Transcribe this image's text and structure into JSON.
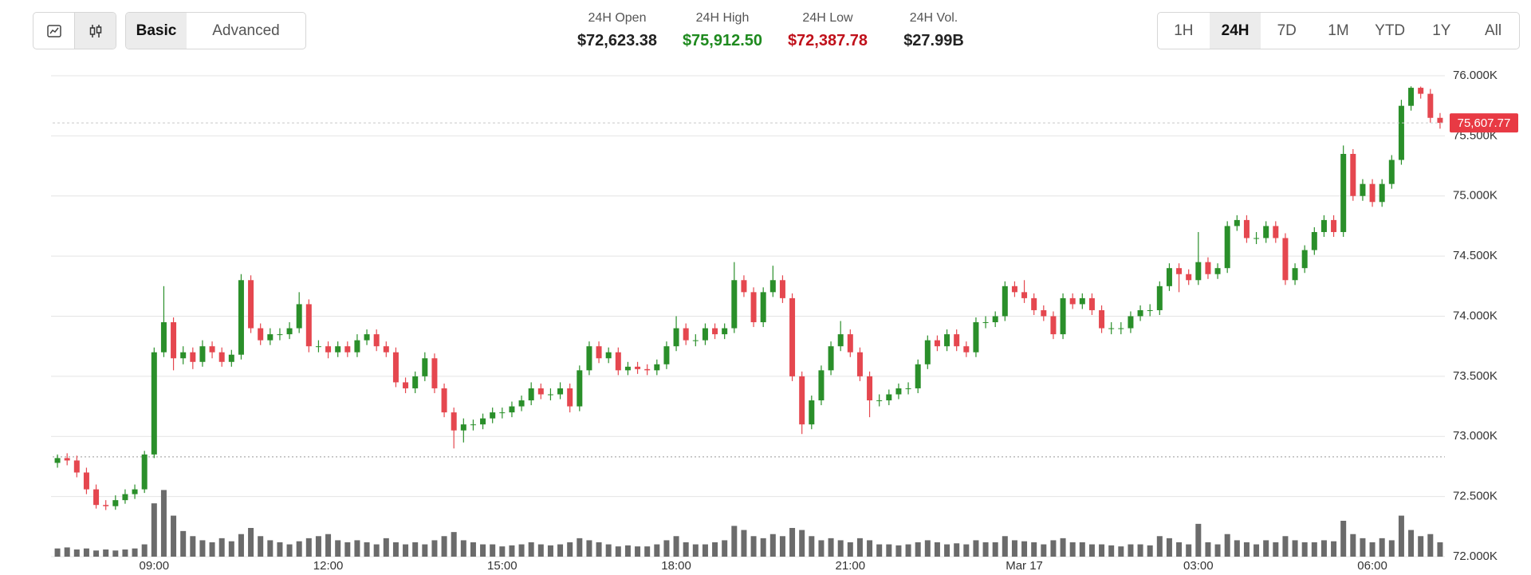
{
  "toolbar": {
    "view_buttons": [
      "Basic",
      "Advanced"
    ],
    "active_view": "Basic",
    "stats": [
      {
        "label": "24H Open",
        "value": "$72,623.38",
        "color": "#222222"
      },
      {
        "label": "24H High",
        "value": "$75,912.50",
        "color": "#1e8a1e"
      },
      {
        "label": "24H Low",
        "value": "$72,387.78",
        "color": "#c0111b"
      },
      {
        "label": "24H Vol.",
        "value": "$27.99B",
        "color": "#222222"
      }
    ],
    "range_buttons": [
      "1H",
      "24H",
      "7D",
      "1M",
      "YTD",
      "1Y",
      "All"
    ],
    "active_range": "24H"
  },
  "chart_data": {
    "type": "candlestick",
    "up_color": "#2a8f2a",
    "down_color": "#e5474f",
    "volume_color": "#6b6b6b",
    "grid": true,
    "ylim": [
      72000,
      76000
    ],
    "yticks": [
      {
        "value": 72000,
        "label": "72.000K"
      },
      {
        "value": 72500,
        "label": "72.500K"
      },
      {
        "value": 73000,
        "label": "73.000K"
      },
      {
        "value": 73500,
        "label": "73.500K"
      },
      {
        "value": 74000,
        "label": "74.000K"
      },
      {
        "value": 74500,
        "label": "74.500K"
      },
      {
        "value": 75000,
        "label": "75.000K"
      },
      {
        "value": 75500,
        "label": "75.500K"
      },
      {
        "value": 76000,
        "label": "76.000K"
      }
    ],
    "last_price_label": "75,607.77",
    "reference_line": 72830,
    "volume_lim": [
      0,
      70
    ],
    "categories": [
      null,
      null,
      null,
      null,
      null,
      null,
      null,
      null,
      null,
      null,
      "09:00",
      null,
      null,
      null,
      null,
      null,
      null,
      null,
      null,
      null,
      null,
      null,
      null,
      null,
      null,
      null,
      null,
      null,
      "12:00",
      null,
      null,
      null,
      null,
      null,
      null,
      null,
      null,
      null,
      null,
      null,
      null,
      null,
      null,
      null,
      null,
      null,
      "15:00",
      null,
      null,
      null,
      null,
      null,
      null,
      null,
      null,
      null,
      null,
      null,
      null,
      null,
      null,
      null,
      null,
      null,
      "18:00",
      null,
      null,
      null,
      null,
      null,
      null,
      null,
      null,
      null,
      null,
      null,
      null,
      null,
      null,
      null,
      null,
      null,
      "21:00",
      null,
      null,
      null,
      null,
      null,
      null,
      null,
      null,
      null,
      null,
      null,
      null,
      null,
      null,
      null,
      null,
      null,
      "Mar 17",
      null,
      null,
      null,
      null,
      null,
      null,
      null,
      null,
      null,
      null,
      null,
      null,
      null,
      null,
      null,
      null,
      null,
      "03:00",
      null,
      null,
      null,
      null,
      null,
      null,
      null,
      null,
      null,
      null,
      null,
      null,
      null,
      null,
      null,
      null,
      null,
      "06:00",
      null,
      null,
      null,
      null,
      null,
      null,
      null
    ],
    "open": [
      72780,
      72820,
      72800,
      72700,
      72560,
      72430,
      72420,
      72470,
      72520,
      72560,
      72850,
      73700,
      73950,
      73650,
      73700,
      73620,
      73750,
      73700,
      73620,
      73680,
      74300,
      73900,
      73800,
      73850,
      73850,
      73900,
      74100,
      73750,
      73750,
      73700,
      73750,
      73700,
      73800,
      73850,
      73750,
      73700,
      73450,
      73400,
      73500,
      73650,
      73400,
      73200,
      73050,
      73100,
      73100,
      73150,
      73200,
      73200,
      73250,
      73300,
      73400,
      73350,
      73350,
      73400,
      73250,
      73550,
      73750,
      73650,
      73700,
      73550,
      73580,
      73560,
      73550,
      73600,
      73750,
      73900,
      73800,
      73800,
      73900,
      73850,
      73900,
      74300,
      74200,
      73950,
      74200,
      74300,
      74150,
      73500,
      73100,
      73300,
      73550,
      73750,
      73850,
      73700,
      73500,
      73300,
      73300,
      73350,
      73400,
      73400,
      73600,
      73800,
      73750,
      73850,
      73750,
      73700,
      73950,
      73950,
      74000,
      74250,
      74200,
      74150,
      74050,
      74000,
      73850,
      74150,
      74100,
      74150,
      74050,
      73900,
      73900,
      73900,
      74000,
      74050,
      74050,
      74250,
      74400,
      74350,
      74300,
      74450,
      74350,
      74400,
      74750,
      74800,
      74650,
      74650,
      74750,
      74650,
      74300,
      74400,
      74550,
      74700,
      74800,
      74700,
      75350,
      75000,
      75100,
      74950,
      75100,
      75300,
      75750,
      75900,
      75850,
      75650
    ],
    "high": [
      72850,
      72860,
      72840,
      72740,
      72600,
      72470,
      72510,
      72560,
      72600,
      72880,
      73740,
      74250,
      73990,
      73750,
      73740,
      73800,
      73790,
      73740,
      73720,
      74350,
      74340,
      73940,
      73900,
      73900,
      73950,
      74200,
      74140,
      73800,
      73790,
      73790,
      73790,
      73850,
      73890,
      73890,
      73790,
      73740,
      73490,
      73540,
      73700,
      73690,
      73440,
      73240,
      73150,
      73140,
      73190,
      73240,
      73240,
      73290,
      73340,
      73450,
      73440,
      73400,
      73450,
      73440,
      73590,
      73790,
      73790,
      73740,
      73740,
      73620,
      73620,
      73600,
      73640,
      73790,
      74000,
      73940,
      73850,
      73940,
      73940,
      73940,
      74450,
      74340,
      74240,
      74240,
      74420,
      74340,
      74190,
      73540,
      73340,
      73590,
      73790,
      73960,
      73890,
      73740,
      73540,
      73350,
      73390,
      73440,
      73450,
      73640,
      73840,
      73840,
      73890,
      73890,
      73790,
      73990,
      74000,
      74040,
      74290,
      74290,
      74300,
      74190,
      74090,
      74040,
      74190,
      74190,
      74190,
      74190,
      74090,
      73950,
      73950,
      74040,
      74090,
      74100,
      74290,
      74440,
      74440,
      74390,
      74700,
      74490,
      74440,
      74790,
      74840,
      74840,
      74700,
      74790,
      74790,
      74690,
      74440,
      74590,
      74740,
      74840,
      74840,
      75420,
      75390,
      75140,
      75140,
      75140,
      75340,
      75800,
      75912.5,
      75910,
      75890,
      75690
    ],
    "low": [
      72740,
      72760,
      72660,
      72520,
      72400,
      72387.78,
      72390,
      72440,
      72480,
      72530,
      72820,
      73660,
      73550,
      73600,
      73560,
      73580,
      73650,
      73580,
      73580,
      73640,
      73860,
      73760,
      73760,
      73800,
      73810,
      73860,
      73700,
      73700,
      73650,
      73660,
      73660,
      73660,
      73760,
      73710,
      73660,
      73410,
      73360,
      73360,
      73460,
      73360,
      73160,
      72900,
      72950,
      73050,
      73060,
      73110,
      73150,
      73160,
      73210,
      73260,
      73310,
      73300,
      73310,
      73200,
      73210,
      73510,
      73610,
      73610,
      73510,
      73510,
      73520,
      73510,
      73510,
      73560,
      73710,
      73760,
      73750,
      73760,
      73810,
      73810,
      73860,
      74160,
      73910,
      73910,
      74160,
      74110,
      73460,
      73020,
      73060,
      73260,
      73510,
      73710,
      73660,
      73460,
      73160,
      73250,
      73260,
      73310,
      73350,
      73360,
      73560,
      73710,
      73710,
      73710,
      73660,
      73660,
      73900,
      73910,
      73960,
      74160,
      74110,
      74010,
      73960,
      73810,
      73810,
      74060,
      74060,
      74010,
      73860,
      73850,
      73850,
      73860,
      73960,
      74000,
      74010,
      74210,
      74200,
      74260,
      74260,
      74310,
      74310,
      74360,
      74710,
      74610,
      74600,
      74610,
      74610,
      74260,
      74260,
      74360,
      74510,
      74660,
      74660,
      74660,
      74960,
      74960,
      74910,
      74910,
      75060,
      75260,
      75710,
      75810,
      75610,
      75560
    ],
    "close": [
      72820,
      72800,
      72700,
      72560,
      72430,
      72420,
      72470,
      72520,
      72560,
      72850,
      73700,
      73950,
      73650,
      73700,
      73620,
      73750,
      73700,
      73620,
      73680,
      74300,
      73900,
      73800,
      73850,
      73850,
      73900,
      74100,
      73750,
      73750,
      73700,
      73750,
      73700,
      73800,
      73850,
      73750,
      73700,
      73450,
      73400,
      73500,
      73650,
      73400,
      73200,
      73050,
      73100,
      73100,
      73150,
      73200,
      73200,
      73250,
      73300,
      73400,
      73350,
      73350,
      73400,
      73250,
      73550,
      73750,
      73650,
      73700,
      73550,
      73580,
      73560,
      73550,
      73600,
      73750,
      73900,
      73800,
      73800,
      73900,
      73850,
      73900,
      74300,
      74200,
      73950,
      74200,
      74300,
      74150,
      73500,
      73100,
      73300,
      73550,
      73750,
      73850,
      73700,
      73500,
      73300,
      73300,
      73350,
      73400,
      73400,
      73600,
      73800,
      73750,
      73850,
      73750,
      73700,
      73950,
      73950,
      74000,
      74250,
      74200,
      74150,
      74050,
      74000,
      73850,
      74150,
      74100,
      74150,
      74050,
      73900,
      73900,
      73900,
      74000,
      74050,
      74050,
      74250,
      74400,
      74350,
      74300,
      74450,
      74350,
      74400,
      74750,
      74800,
      74650,
      74650,
      74750,
      74650,
      74300,
      74400,
      74550,
      74700,
      74800,
      74700,
      75350,
      75000,
      75100,
      74950,
      75100,
      75300,
      75750,
      75900,
      75850,
      75650,
      75607.77
    ],
    "volume": [
      8,
      9,
      7,
      8,
      6,
      7,
      6,
      7,
      8,
      12,
      52,
      65,
      40,
      25,
      20,
      16,
      14,
      18,
      15,
      22,
      28,
      20,
      16,
      14,
      12,
      15,
      18,
      20,
      22,
      16,
      14,
      16,
      14,
      12,
      18,
      14,
      12,
      14,
      12,
      16,
      20,
      24,
      16,
      14,
      12,
      12,
      10,
      11,
      12,
      14,
      12,
      11,
      12,
      14,
      18,
      16,
      14,
      12,
      10,
      11,
      10,
      10,
      12,
      16,
      20,
      14,
      12,
      12,
      14,
      16,
      30,
      26,
      20,
      18,
      22,
      20,
      28,
      26,
      20,
      16,
      18,
      16,
      14,
      18,
      16,
      12,
      12,
      11,
      12,
      14,
      16,
      14,
      12,
      13,
      12,
      16,
      14,
      14,
      20,
      16,
      15,
      14,
      12,
      16,
      18,
      14,
      14,
      12,
      12,
      11,
      10,
      12,
      12,
      11,
      20,
      18,
      14,
      12,
      32,
      14,
      12,
      22,
      16,
      14,
      12,
      16,
      14,
      20,
      16,
      14,
      14,
      16,
      15,
      35,
      22,
      18,
      14,
      18,
      16,
      40,
      26,
      20,
      22,
      14
    ]
  }
}
